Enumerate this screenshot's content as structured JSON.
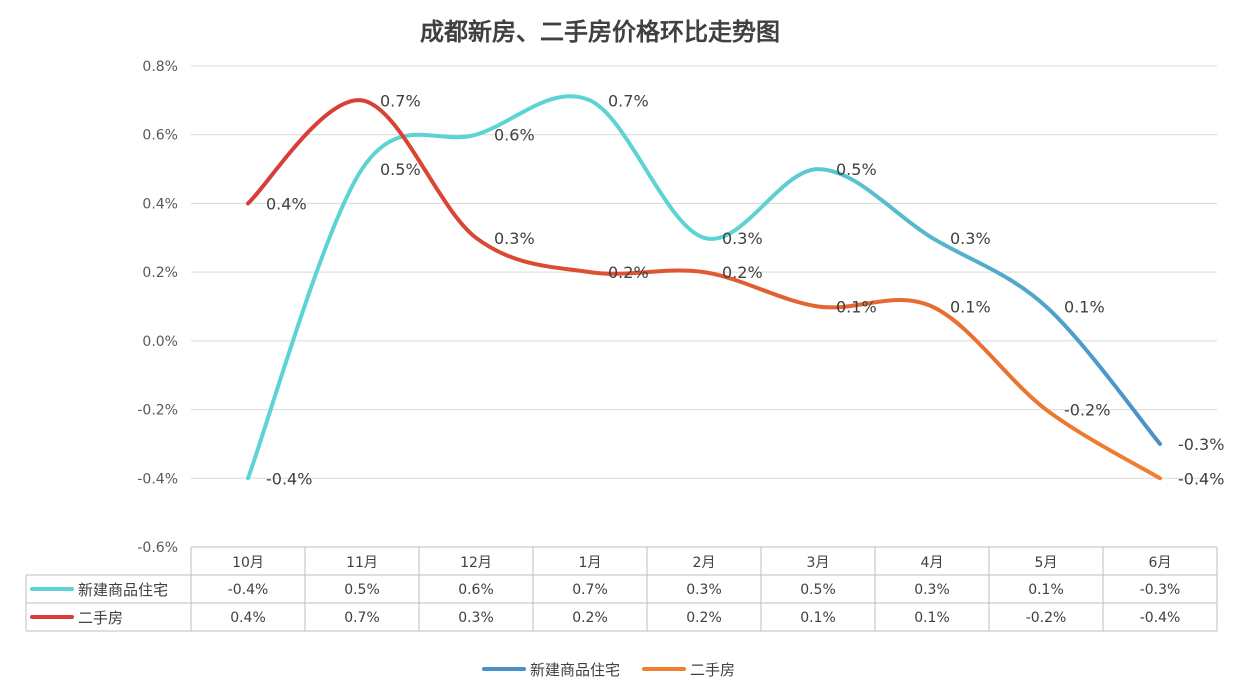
{
  "chart_data": {
    "type": "line",
    "title": "成都新房、二手房价格环比走势图",
    "categories": [
      "10月",
      "11月",
      "12月",
      "1月",
      "2月",
      "3月",
      "4月",
      "5月",
      "6月"
    ],
    "ylim": [
      -0.6,
      0.8
    ],
    "yticks": [
      -0.6,
      -0.4,
      -0.2,
      0.0,
      0.2,
      0.4,
      0.6,
      0.8
    ],
    "ytick_labels": [
      "-0.6%",
      "-0.4%",
      "-0.2%",
      "0.0%",
      "0.2%",
      "0.4%",
      "0.6%",
      "0.8%"
    ],
    "grid": true,
    "legend_position": "bottom",
    "data_table": true,
    "series": [
      {
        "name": "新建商品住宅",
        "values": [
          -0.4,
          0.5,
          0.6,
          0.7,
          0.3,
          0.5,
          0.3,
          0.1,
          -0.3
        ],
        "labels": [
          "-0.4%",
          "0.5%",
          "0.6%",
          "0.7%",
          "0.3%",
          "0.5%",
          "0.3%",
          "0.1%",
          "-0.3%"
        ],
        "color_start": "#5ED3D3",
        "color_end": "#4A90C8"
      },
      {
        "name": "二手房",
        "values": [
          0.4,
          0.7,
          0.3,
          0.2,
          0.2,
          0.1,
          0.1,
          -0.2,
          -0.4
        ],
        "labels": [
          "0.4%",
          "0.7%",
          "0.3%",
          "0.2%",
          "0.2%",
          "0.1%",
          "0.1%",
          "-0.2%",
          "-0.4%"
        ],
        "color_start": "#D93A3A",
        "color_end": "#F08030"
      }
    ]
  }
}
